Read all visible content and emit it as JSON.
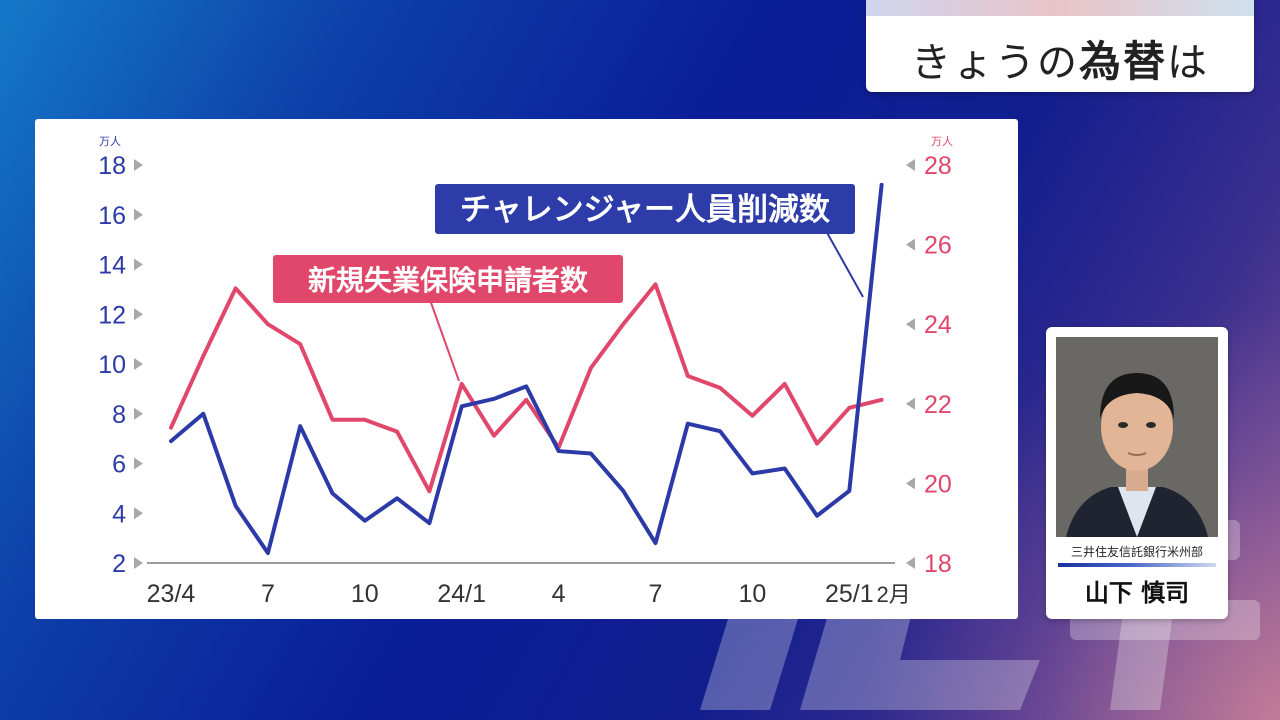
{
  "header": {
    "title_plain": "きょうの",
    "title_bold": "為替",
    "title_suffix": "は"
  },
  "speaker": {
    "org": "三井住友信託銀行米州部",
    "name": "山下 慎司"
  },
  "colors": {
    "blue_series": "#2c3aa8",
    "red_series": "#e0476a",
    "blue_label_bg": "#2d3ca8",
    "red_label_bg": "#e0476a"
  },
  "chart_data": {
    "type": "line",
    "x": [
      "23/4",
      "23/5",
      "23/6",
      "23/7",
      "23/8",
      "23/9",
      "23/10",
      "23/11",
      "23/12",
      "24/1",
      "24/2",
      "24/3",
      "24/4",
      "24/5",
      "24/6",
      "24/7",
      "24/8",
      "24/9",
      "24/10",
      "24/11",
      "24/12",
      "25/1",
      "25/2"
    ],
    "x_tick_labels": [
      "23/4",
      "7",
      "10",
      "24/1",
      "4",
      "7",
      "10",
      "25/1",
      "2月"
    ],
    "left_axis": {
      "unit": "万人",
      "range": [
        2,
        18
      ],
      "ticks": [
        "2",
        "4",
        "6",
        "8",
        "10",
        "12",
        "14",
        "16",
        "18"
      ]
    },
    "right_axis": {
      "unit": "万人",
      "range": [
        18,
        28
      ],
      "ticks": [
        "18",
        "20",
        "22",
        "24",
        "26",
        "28"
      ]
    },
    "series": [
      {
        "name": "チャレンジャー人員削減数",
        "axis": "left",
        "values": [
          6.9,
          8.0,
          4.3,
          2.4,
          7.5,
          4.8,
          3.7,
          4.6,
          3.6,
          8.3,
          8.6,
          9.1,
          6.5,
          6.4,
          4.9,
          2.8,
          7.6,
          7.3,
          5.6,
          5.8,
          3.9,
          4.9,
          17.2
        ]
      },
      {
        "name": "新規失業保険申請者数",
        "axis": "right",
        "values": [
          21.4,
          23.2,
          24.9,
          24.0,
          23.5,
          21.6,
          21.6,
          21.3,
          19.8,
          22.5,
          21.2,
          22.1,
          20.9,
          22.9,
          24.0,
          25.0,
          22.7,
          22.4,
          21.7,
          22.5,
          21.0,
          21.9,
          22.1
        ]
      }
    ]
  }
}
